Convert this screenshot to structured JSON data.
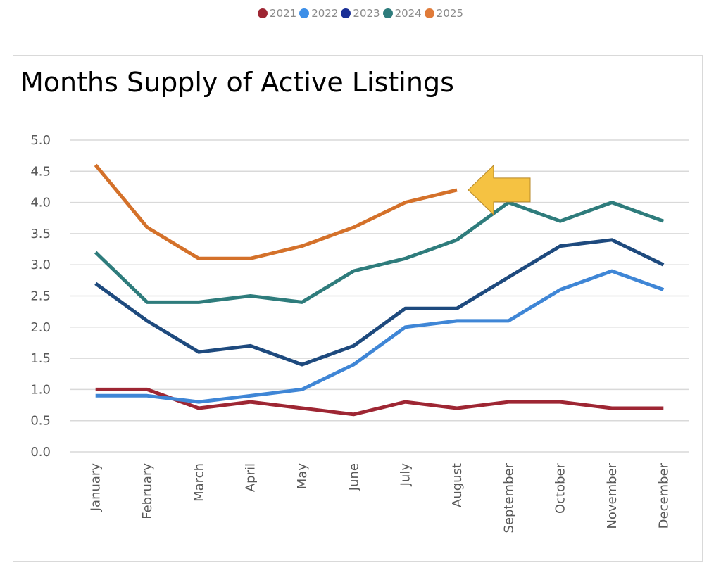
{
  "chart_data": {
    "type": "line",
    "title": "Months Supply of Active Listings",
    "categories": [
      "January",
      "February",
      "March",
      "April",
      "May",
      "June",
      "July",
      "August",
      "September",
      "October",
      "November",
      "December"
    ],
    "ylim": [
      0,
      5
    ],
    "yticks": [
      "0.0",
      "0.5",
      "1.0",
      "1.5",
      "2.0",
      "2.5",
      "3.0",
      "3.5",
      "4.0",
      "4.5",
      "5.0"
    ],
    "grid": true,
    "legend_position": "top-center",
    "series": [
      {
        "name": "2021",
        "color": "#9e2633",
        "legend_color": "#9e2633",
        "values": [
          1.0,
          1.0,
          0.7,
          0.8,
          0.7,
          0.6,
          0.8,
          0.7,
          0.8,
          0.8,
          0.7,
          0.7
        ]
      },
      {
        "name": "2022",
        "color": "#3f86d6",
        "legend_color": "#3d8fe8",
        "values": [
          0.9,
          0.9,
          0.8,
          0.9,
          1.0,
          1.4,
          2.0,
          2.1,
          2.1,
          2.6,
          2.9,
          2.6
        ]
      },
      {
        "name": "2023",
        "color": "#1e4a7e",
        "legend_color": "#1a2f96",
        "values": [
          2.7,
          2.1,
          1.6,
          1.7,
          1.4,
          1.7,
          2.3,
          2.3,
          2.8,
          3.3,
          3.4,
          3.0
        ]
      },
      {
        "name": "2024",
        "color": "#2e7c7c",
        "legend_color": "#2e7c7c",
        "values": [
          3.2,
          2.4,
          2.4,
          2.5,
          2.4,
          2.9,
          3.1,
          3.4,
          4.0,
          3.7,
          4.0,
          3.7
        ]
      },
      {
        "name": "2025",
        "color": "#d4712a",
        "legend_color": "#e07b39",
        "values": [
          4.6,
          3.6,
          3.1,
          3.1,
          3.3,
          3.6,
          4.0,
          4.2,
          null,
          null,
          null,
          null
        ]
      }
    ],
    "annotation": {
      "type": "arrow-left",
      "color": "#f5c242",
      "points_to": "2025 August"
    }
  }
}
